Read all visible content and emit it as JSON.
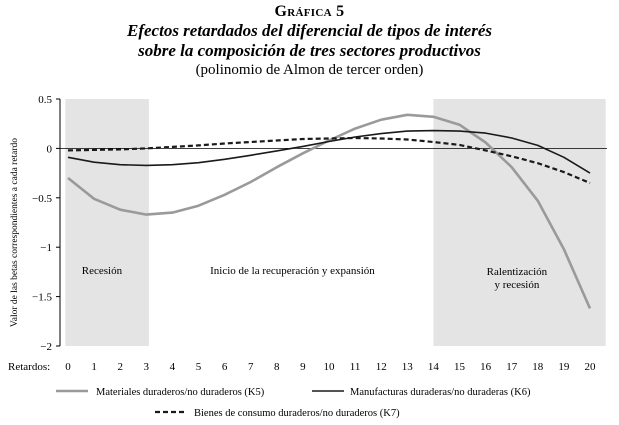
{
  "figure": {
    "label": "Gráfica 5",
    "title_line1": "Efectos retardados del diferencial de tipos de interés",
    "title_line2": "sobre la composición de tres sectores productivos",
    "subtitle": "(polinomio de Almon de tercer orden)"
  },
  "chart_data": {
    "type": "line",
    "ylabel": "Valor de las betas correspondientes a cada retardo",
    "xlabel": "Retardos:",
    "ylim": [
      -2,
      0.5
    ],
    "yticks": [
      0.5,
      0,
      -0.5,
      -1,
      -1.5,
      -2
    ],
    "ytick_labels": [
      "0.5",
      "0",
      "−0.5",
      "−1",
      "−1.5",
      "−2"
    ],
    "x": [
      0,
      1,
      2,
      3,
      4,
      5,
      6,
      7,
      8,
      9,
      10,
      11,
      12,
      13,
      14,
      15,
      16,
      17,
      18,
      19,
      20
    ],
    "xtick_labels": [
      "0",
      "1",
      "2",
      "3",
      "4",
      "5",
      "6",
      "7",
      "8",
      "9",
      "10",
      "11",
      "12",
      "13",
      "14",
      "15",
      "16",
      "17",
      "18",
      "19",
      "20"
    ],
    "shaded_regions": [
      {
        "from": -0.1,
        "to": 3.1,
        "label_lines": [
          "Recesión"
        ],
        "label_x": 1.3,
        "label_y": -1.27
      },
      {
        "from": 14.0,
        "to": 20.6,
        "label_lines": [
          "Ralentización",
          "y recesión"
        ],
        "label_x": 17.2,
        "label_y": -1.28
      }
    ],
    "annotations": [
      {
        "text": "Inicio de la recuperación y expansión",
        "x": 8.6,
        "y": -1.27
      }
    ],
    "series": [
      {
        "name": "Materiales duraderos/no duraderos (K5)",
        "style": "gray",
        "values": [
          -0.3,
          -0.51,
          -0.62,
          -0.67,
          -0.65,
          -0.58,
          -0.47,
          -0.34,
          -0.19,
          -0.05,
          0.08,
          0.2,
          0.29,
          0.34,
          0.32,
          0.24,
          0.06,
          -0.19,
          -0.53,
          -1.02,
          -1.62
        ]
      },
      {
        "name": "Manufacturas duraderas/no duraderas (K6)",
        "style": "solid",
        "values": [
          -0.09,
          -0.14,
          -0.165,
          -0.172,
          -0.165,
          -0.145,
          -0.11,
          -0.07,
          -0.025,
          0.02,
          0.07,
          0.115,
          0.15,
          0.175,
          0.18,
          0.175,
          0.155,
          0.105,
          0.03,
          -0.09,
          -0.25
        ]
      },
      {
        "name": "Bienes de consumo duraderos/no duraderos (K7)",
        "style": "dashed",
        "values": [
          -0.02,
          -0.015,
          -0.01,
          0.0,
          0.015,
          0.03,
          0.05,
          0.065,
          0.08,
          0.095,
          0.1,
          0.105,
          0.1,
          0.09,
          0.065,
          0.035,
          -0.02,
          -0.08,
          -0.15,
          -0.24,
          -0.35
        ]
      }
    ],
    "legend_placement": "bottom"
  },
  "colors": {
    "gray_line": "#9a9a9a",
    "black_line": "#1a1a1a",
    "shade": "#e4e4e4"
  }
}
